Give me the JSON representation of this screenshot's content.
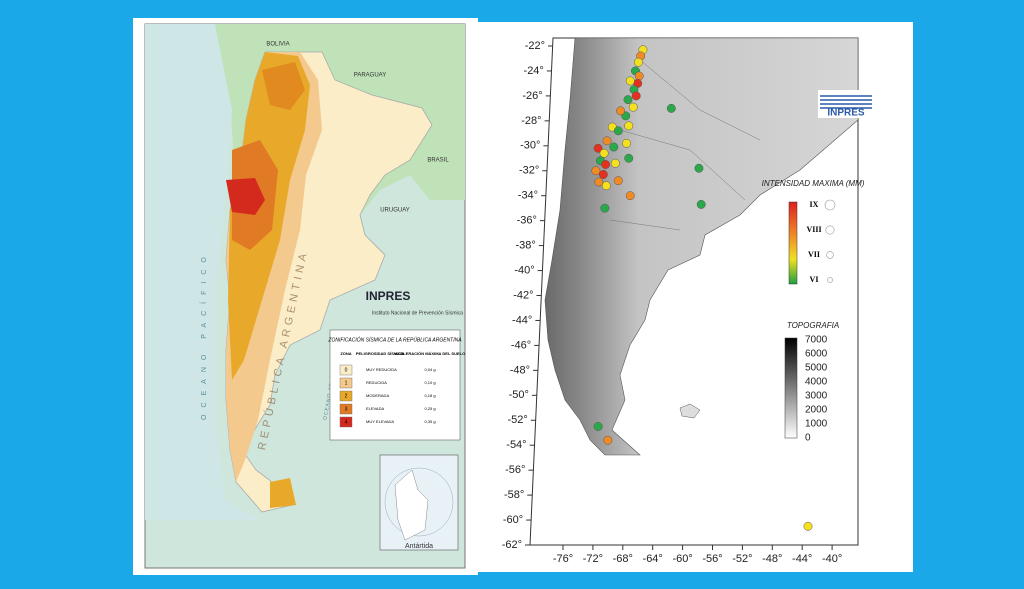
{
  "left_map": {
    "countries": [
      "BOLIVIA",
      "PARAGUAY",
      "BRASIL",
      "URUGUAY"
    ],
    "pacific": "OCEANO PACÍFICO",
    "atlantic": "OCEANO ATLÁNTICO",
    "country_name": "REPÚBLICA ARGENTINA",
    "logo": "INPRES",
    "institute": "Instituto Nacional de Prevención Sísmica",
    "legend": {
      "title": "ZONIFICACIÓN SÍSMICA DE LA REPÚBLICA ARGENTINA",
      "headers": [
        "ZONA",
        "PELIGROSIDAD SÍSMICA",
        "ACELERACIÓN MÁXIMA DEL SUELO"
      ],
      "rows": [
        [
          "0",
          "MUY REDUCIDA",
          "0,04 g"
        ],
        [
          "1",
          "REDUCIDA",
          "0,10 g"
        ],
        [
          "2",
          "MODERADA",
          "0,18 g"
        ],
        [
          "3",
          "ELEVADA",
          "0,25 g"
        ],
        [
          "4",
          "MUY ELEVADA",
          "0,35 g"
        ]
      ]
    },
    "inset": "Antártida"
  },
  "right_map": {
    "lat_ticks": [
      "-22°",
      "-24°",
      "-26°",
      "-28°",
      "-30°",
      "-32°",
      "-34°",
      "-36°",
      "-38°",
      "-40°",
      "-42°",
      "-44°",
      "-46°",
      "-48°",
      "-50°",
      "-52°",
      "-54°",
      "-56°",
      "-58°",
      "-60°",
      "-62°"
    ],
    "lon_ticks": [
      "-76°",
      "-72°",
      "-68°",
      "-64°",
      "-60°",
      "-56°",
      "-52°",
      "-48°",
      "-44°",
      "-40°"
    ],
    "logo": "INPRES",
    "intensity": {
      "title": "INTENSIDAD MAXIMA (MM)",
      "levels": [
        "IX",
        "VIII",
        "VII",
        "VI"
      ]
    },
    "topography": {
      "title": "TOPOGRAFIA",
      "levels": [
        "7000",
        "6000",
        "5000",
        "4000",
        "3000",
        "2000",
        "1000",
        "0"
      ]
    },
    "events": [
      {
        "lon": -65.3,
        "lat": -22.3,
        "color": "#f5e020"
      },
      {
        "lon": -65.6,
        "lat": -22.8,
        "color": "#f08a24"
      },
      {
        "lon": -65.9,
        "lat": -23.3,
        "color": "#f5e020"
      },
      {
        "lon": -66.3,
        "lat": -24.0,
        "color": "#2aa84a"
      },
      {
        "lon": -65.8,
        "lat": -24.4,
        "color": "#f08a24"
      },
      {
        "lon": -66.0,
        "lat": -25.0,
        "color": "#e53020"
      },
      {
        "lon": -66.5,
        "lat": -25.5,
        "color": "#2aa84a"
      },
      {
        "lon": -67.0,
        "lat": -24.8,
        "color": "#f5e020"
      },
      {
        "lon": -66.2,
        "lat": -26.0,
        "color": "#e53020"
      },
      {
        "lon": -67.3,
        "lat": -26.3,
        "color": "#2aa84a"
      },
      {
        "lon": -66.6,
        "lat": -26.9,
        "color": "#f5e020"
      },
      {
        "lon": -67.6,
        "lat": -27.6,
        "color": "#2aa84a"
      },
      {
        "lon": -68.3,
        "lat": -27.2,
        "color": "#f08a24"
      },
      {
        "lon": -69.4,
        "lat": -28.5,
        "color": "#f5e020"
      },
      {
        "lon": -68.6,
        "lat": -28.8,
        "color": "#2aa84a"
      },
      {
        "lon": -67.2,
        "lat": -28.4,
        "color": "#f5e020"
      },
      {
        "lon": -70.1,
        "lat": -29.6,
        "color": "#f08a24"
      },
      {
        "lon": -71.3,
        "lat": -30.2,
        "color": "#e53020"
      },
      {
        "lon": -70.5,
        "lat": -30.6,
        "color": "#f5e020"
      },
      {
        "lon": -69.2,
        "lat": -30.1,
        "color": "#2aa84a"
      },
      {
        "lon": -67.5,
        "lat": -29.8,
        "color": "#f5e020"
      },
      {
        "lon": -71.0,
        "lat": -31.2,
        "color": "#2aa84a"
      },
      {
        "lon": -70.3,
        "lat": -31.5,
        "color": "#e53020"
      },
      {
        "lon": -69.0,
        "lat": -31.4,
        "color": "#f5e020"
      },
      {
        "lon": -71.6,
        "lat": -32.0,
        "color": "#f08a24"
      },
      {
        "lon": -70.6,
        "lat": -32.3,
        "color": "#e53020"
      },
      {
        "lon": -71.2,
        "lat": -32.9,
        "color": "#f08a24"
      },
      {
        "lon": -70.2,
        "lat": -33.2,
        "color": "#f5e020"
      },
      {
        "lon": -68.6,
        "lat": -32.8,
        "color": "#f08a24"
      },
      {
        "lon": -67.2,
        "lat": -31.0,
        "color": "#2aa84a"
      },
      {
        "lon": -67.0,
        "lat": -34.0,
        "color": "#f08a24"
      },
      {
        "lon": -70.4,
        "lat": -35.0,
        "color": "#2aa84a"
      },
      {
        "lon": -61.5,
        "lat": -27.0,
        "color": "#2aa84a"
      },
      {
        "lon": -57.8,
        "lat": -31.8,
        "color": "#2aa84a"
      },
      {
        "lon": -57.5,
        "lat": -34.7,
        "color": "#2aa84a"
      },
      {
        "lon": -71.3,
        "lat": -52.5,
        "color": "#2aa84a"
      },
      {
        "lon": -70.0,
        "lat": -53.6,
        "color": "#f08a24"
      },
      {
        "lon": -43.2,
        "lat": -60.5,
        "color": "#f5e020"
      }
    ]
  }
}
